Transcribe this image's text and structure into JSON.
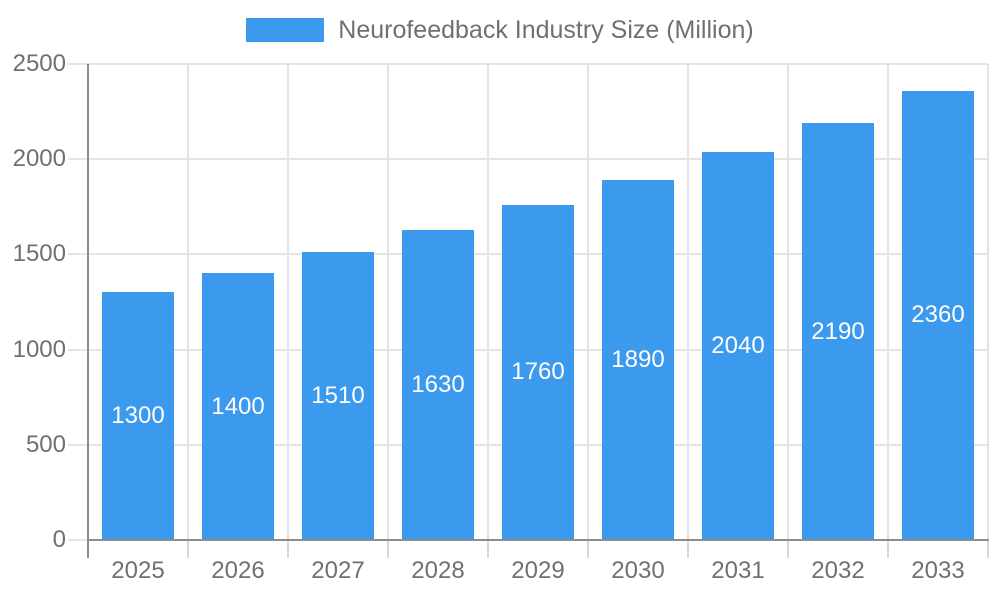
{
  "legend": {
    "label": "Neurofeedback Industry Size (Million)"
  },
  "chart_data": {
    "type": "bar",
    "title": "",
    "xlabel": "",
    "ylabel": "",
    "legend_position": "top",
    "series_name": "Neurofeedback Industry Size (Million)",
    "categories": [
      "2025",
      "2026",
      "2027",
      "2028",
      "2029",
      "2030",
      "2031",
      "2032",
      "2033"
    ],
    "values": [
      1300,
      1400,
      1510,
      1630,
      1760,
      1890,
      2040,
      2190,
      2360
    ],
    "value_labels_shown": true,
    "ylim": [
      0,
      2500
    ],
    "yticks": [
      0,
      500,
      1000,
      1500,
      2000,
      2500
    ],
    "grid": true,
    "colors": {
      "bar": "#3B99EE",
      "gridline": "#E4E4E4",
      "tick": "#D8D8D8",
      "axis": "#8C8C8C",
      "label_text": "#707070",
      "value_label_text": "#FFFFFF",
      "background": "#FFFFFF"
    }
  }
}
